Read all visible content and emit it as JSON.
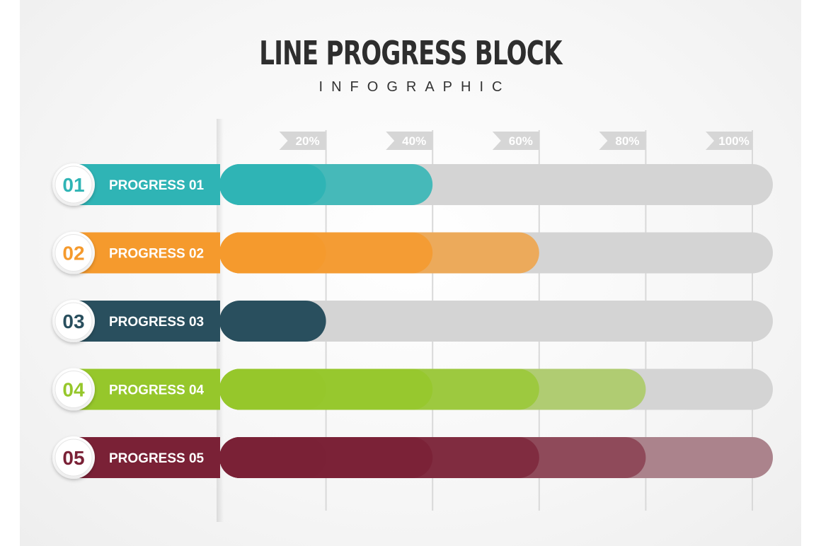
{
  "title": "LINE PROGRESS BLOCK",
  "subtitle": "INFOGRAPHIC",
  "colors": {
    "background": "#f4f4f4",
    "track": "#d4d4d4",
    "gridline": "#d9d9d9",
    "tick_flag": "#d6d6d6",
    "tick_text": "#ffffff"
  },
  "chart_data": {
    "type": "bar",
    "orientation": "horizontal",
    "title": "LINE PROGRESS BLOCK",
    "subtitle": "INFOGRAPHIC",
    "xlim": [
      0,
      100
    ],
    "x_ticks": [
      "20%",
      "40%",
      "60%",
      "80%",
      "100%"
    ],
    "x_tick_values": [
      20,
      40,
      60,
      80,
      100
    ],
    "grid": true,
    "categories": [
      "PROGRESS 01",
      "PROGRESS 02",
      "PROGRESS 03",
      "PROGRESS 04",
      "PROGRESS 05"
    ],
    "badges": [
      "01",
      "02",
      "03",
      "04",
      "05"
    ],
    "values": [
      40,
      60,
      20,
      80,
      100
    ],
    "series_colors": [
      "#2fb4b5",
      "#f59a2d",
      "#294f5e",
      "#96c72b",
      "#7a2136"
    ]
  }
}
